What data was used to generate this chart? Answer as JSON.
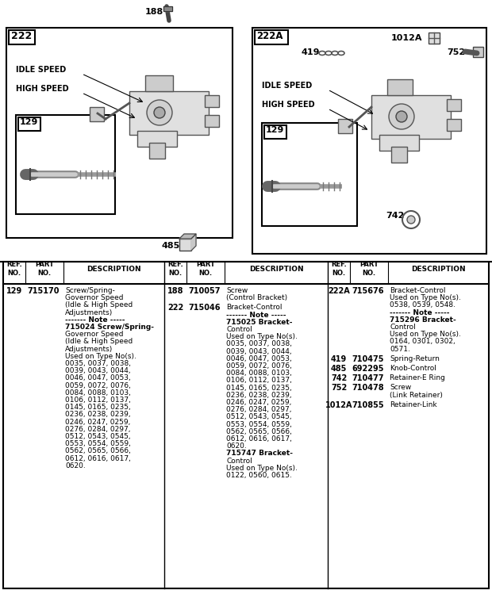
{
  "bg": "#ffffff",
  "part188_label": "188",
  "part485_label": "485",
  "diag1_label": "222",
  "diag2_label": "222A",
  "sub_label": "129",
  "idle_speed": "IDLE SPEED",
  "high_speed": "HIGH SPEED",
  "part419": "419",
  "part1012A": "1012A",
  "part752": "752",
  "part742": "742",
  "col1_entries": [
    [
      "129",
      "715170",
      [
        [
          "normal",
          "Screw/Spring-"
        ],
        [
          "normal",
          "Governor Speed"
        ],
        [
          "normal",
          "(Idle & High Speed"
        ],
        [
          "normal",
          "Adjustments)"
        ],
        [
          "bold",
          "------- Note -----"
        ],
        [
          "bold",
          "715024 Screw/Spring-"
        ],
        [
          "normal",
          "Governor Speed"
        ],
        [
          "normal",
          "(Idle & High Speed"
        ],
        [
          "normal",
          "Adjustments)"
        ],
        [
          "normal",
          "Used on Type No(s)."
        ],
        [
          "normal",
          "0035, 0037, 0038,"
        ],
        [
          "normal",
          "0039, 0043, 0044,"
        ],
        [
          "normal",
          "0046, 0047, 0053,"
        ],
        [
          "normal",
          "0059, 0072, 0076,"
        ],
        [
          "normal",
          "0084, 0088, 0103,"
        ],
        [
          "normal",
          "0106, 0112, 0137,"
        ],
        [
          "normal",
          "0145, 0165, 0235,"
        ],
        [
          "normal",
          "0236, 0238, 0239,"
        ],
        [
          "normal",
          "0246, 0247, 0259,"
        ],
        [
          "normal",
          "0276, 0284, 0297,"
        ],
        [
          "normal",
          "0512, 0543, 0545,"
        ],
        [
          "normal",
          "0553, 0554, 0559,"
        ],
        [
          "normal",
          "0562, 0565, 0566,"
        ],
        [
          "normal",
          "0612, 0616, 0617,"
        ],
        [
          "normal",
          "0620."
        ]
      ]
    ]
  ],
  "col2_entries": [
    [
      "188",
      "710057",
      [
        [
          "normal",
          "Screw"
        ],
        [
          "normal",
          "(Control Bracket)"
        ]
      ]
    ],
    [
      "222",
      "715046",
      [
        [
          "normal",
          "Bracket-Control"
        ],
        [
          "bold",
          "------- Note -----"
        ],
        [
          "bold",
          "715025 Bracket-"
        ],
        [
          "normal",
          "Control"
        ],
        [
          "normal",
          "Used on Type No(s)."
        ],
        [
          "normal",
          "0035, 0037, 0038,"
        ],
        [
          "normal",
          "0039, 0043, 0044,"
        ],
        [
          "normal",
          "0046, 0047, 0053,"
        ],
        [
          "normal",
          "0059, 0072, 0076,"
        ],
        [
          "normal",
          "0084, 0088, 0103,"
        ],
        [
          "normal",
          "0106, 0112, 0137,"
        ],
        [
          "normal",
          "0145, 0165, 0235,"
        ],
        [
          "normal",
          "0236, 0238, 0239,"
        ],
        [
          "normal",
          "0246, 0247, 0259,"
        ],
        [
          "normal",
          "0276, 0284, 0297,"
        ],
        [
          "normal",
          "0512, 0543, 0545,"
        ],
        [
          "normal",
          "0553, 0554, 0559,"
        ],
        [
          "normal",
          "0562, 0565, 0566,"
        ],
        [
          "normal",
          "0612, 0616, 0617,"
        ],
        [
          "normal",
          "0620."
        ],
        [
          "bold",
          "715747 Bracket-"
        ],
        [
          "normal",
          "Control"
        ],
        [
          "normal",
          "Used on Type No(s)."
        ],
        [
          "normal",
          "0122, 0560, 0615."
        ]
      ]
    ]
  ],
  "col3_entries": [
    [
      "222A",
      "715676",
      [
        [
          "normal",
          "Bracket-Control"
        ],
        [
          "normal",
          "Used on Type No(s)."
        ],
        [
          "normal",
          "0538, 0539, 0548."
        ],
        [
          "bold",
          "------- Note -----"
        ],
        [
          "bold",
          "715296 Bracket-"
        ],
        [
          "normal",
          "Control"
        ],
        [
          "normal",
          "Used on Type No(s)."
        ],
        [
          "normal",
          "0164, 0301, 0302,"
        ],
        [
          "normal",
          "0571."
        ]
      ]
    ],
    [
      "419",
      "710475",
      [
        [
          "normal",
          "Spring-Return"
        ]
      ]
    ],
    [
      "485",
      "692295",
      [
        [
          "normal",
          "Knob-Control"
        ]
      ]
    ],
    [
      "742",
      "710477",
      [
        [
          "normal",
          "Retainer-E Ring"
        ]
      ]
    ],
    [
      "752",
      "710478",
      [
        [
          "normal",
          "Screw"
        ],
        [
          "normal",
          "(Link Retainer)"
        ]
      ]
    ],
    [
      "1012A",
      "710855",
      [
        [
          "normal",
          "Retainer-Link"
        ]
      ]
    ]
  ]
}
